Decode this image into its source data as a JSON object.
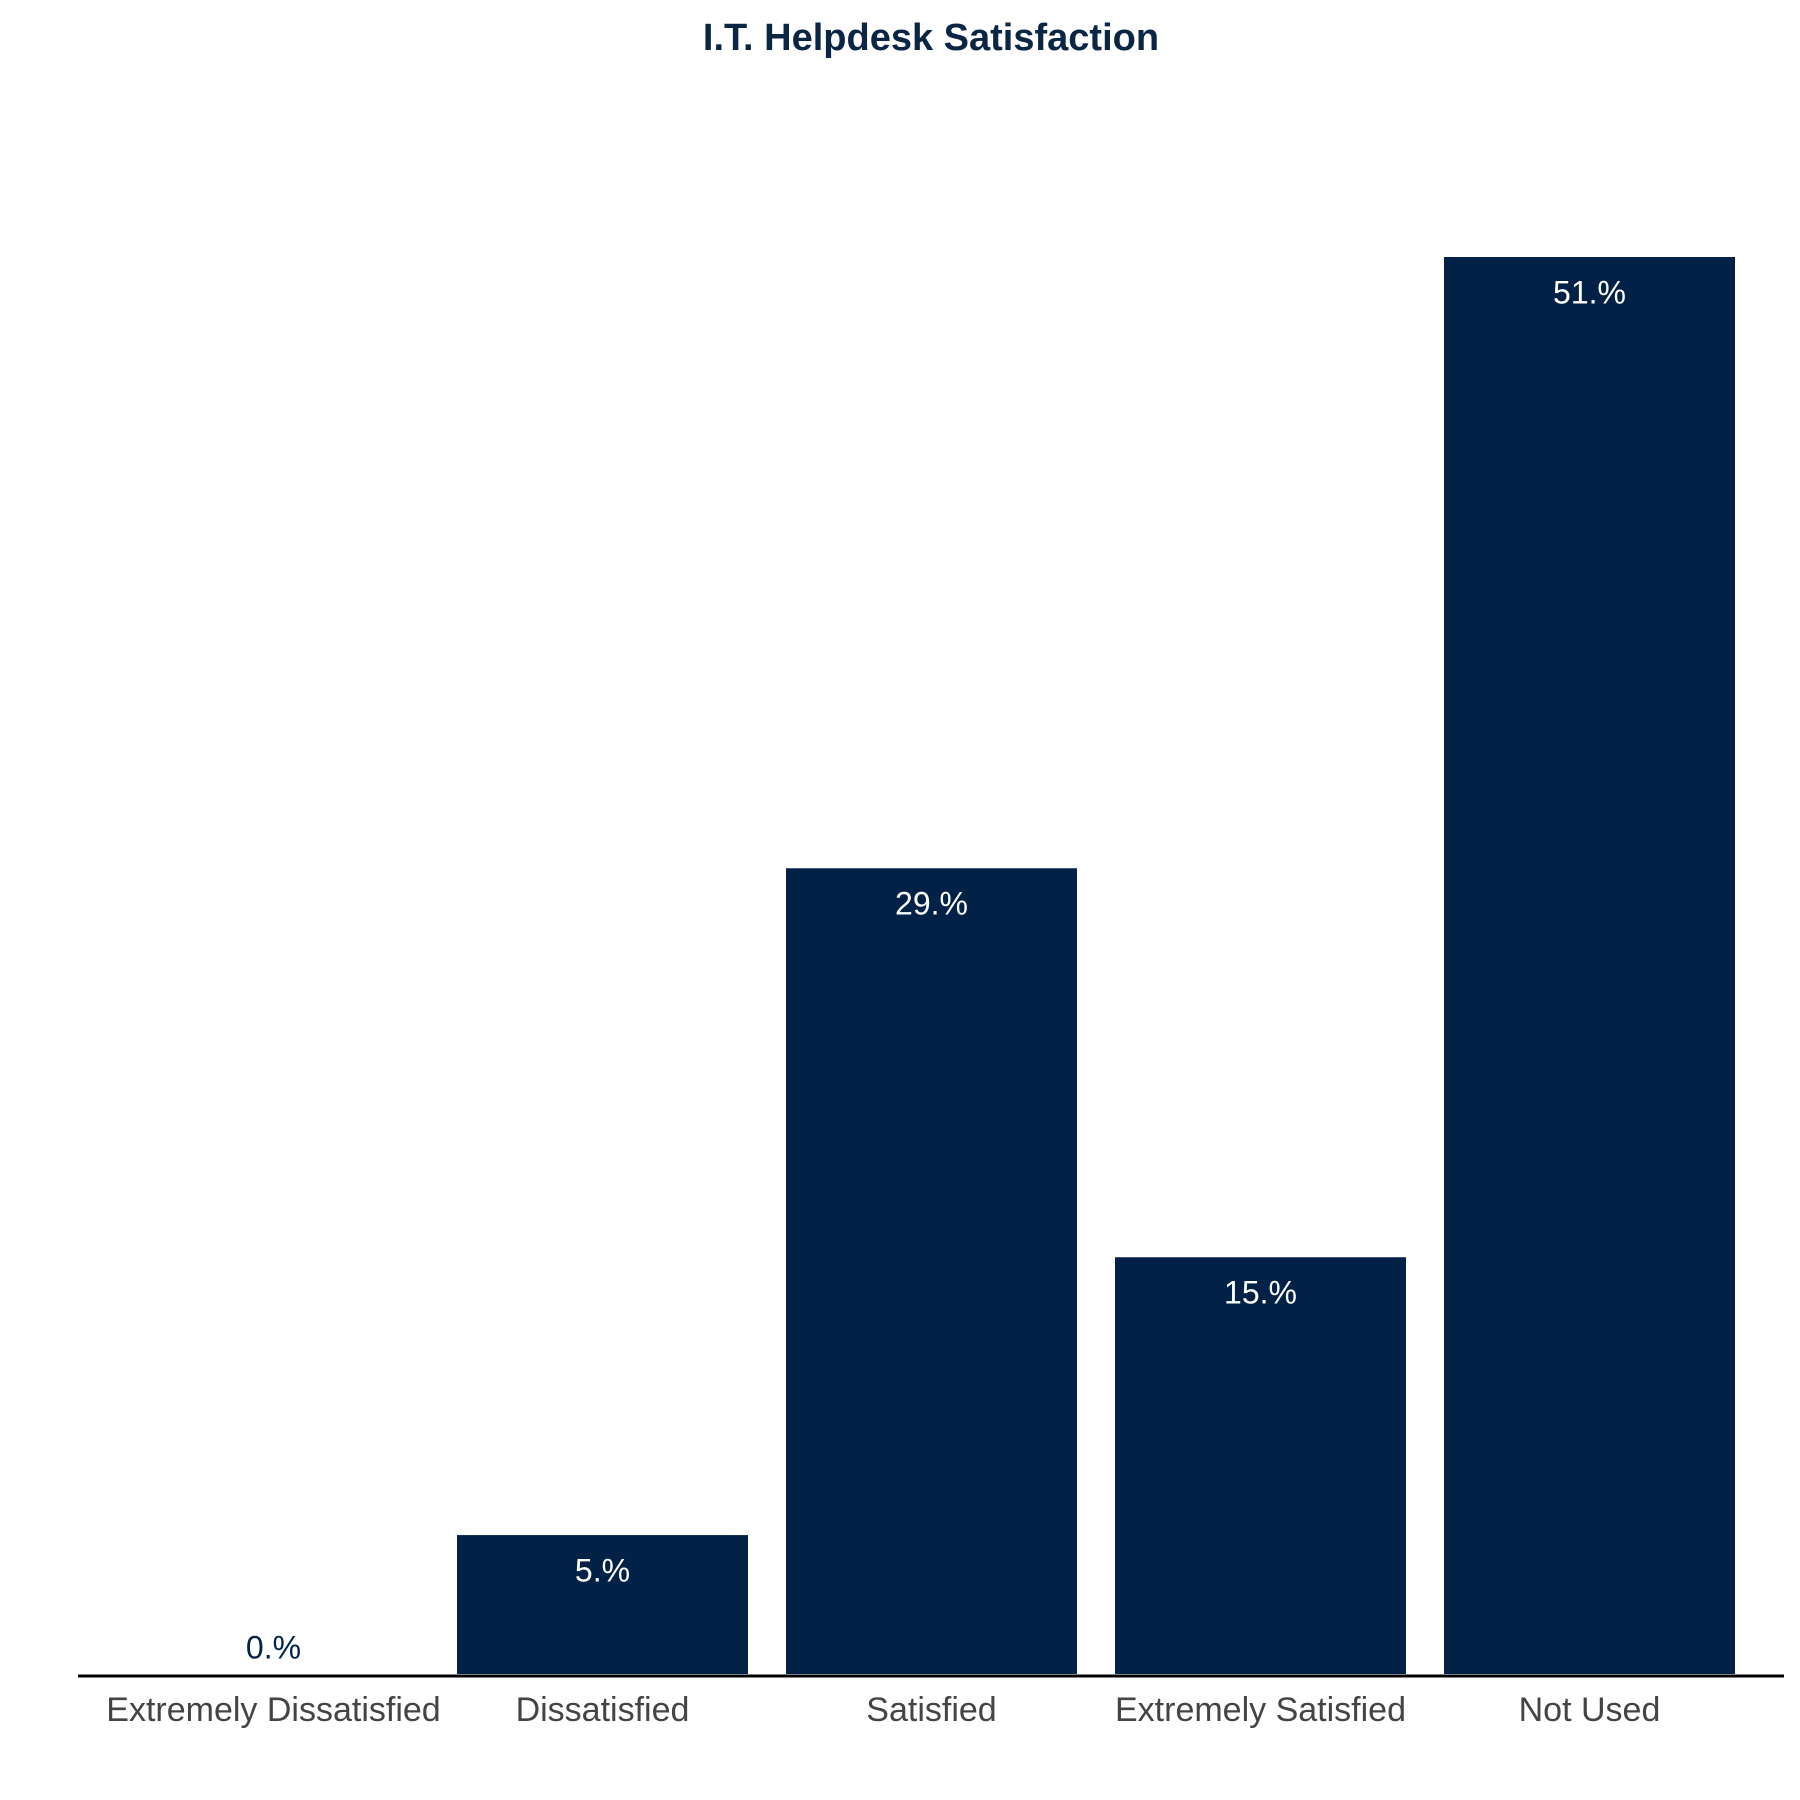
{
  "chart_data": {
    "type": "bar",
    "title": "I.T. Helpdesk Satisfaction",
    "categories": [
      "Extremely Dissatisfied",
      "Dissatisfied",
      "Satisfied",
      "Extremely Satisfied",
      "Not Used"
    ],
    "values": [
      0,
      5,
      29,
      15,
      51
    ],
    "value_labels": [
      "0.%",
      "5.%",
      "29.%",
      "15.%",
      "51.%"
    ],
    "color": "#022147"
  }
}
